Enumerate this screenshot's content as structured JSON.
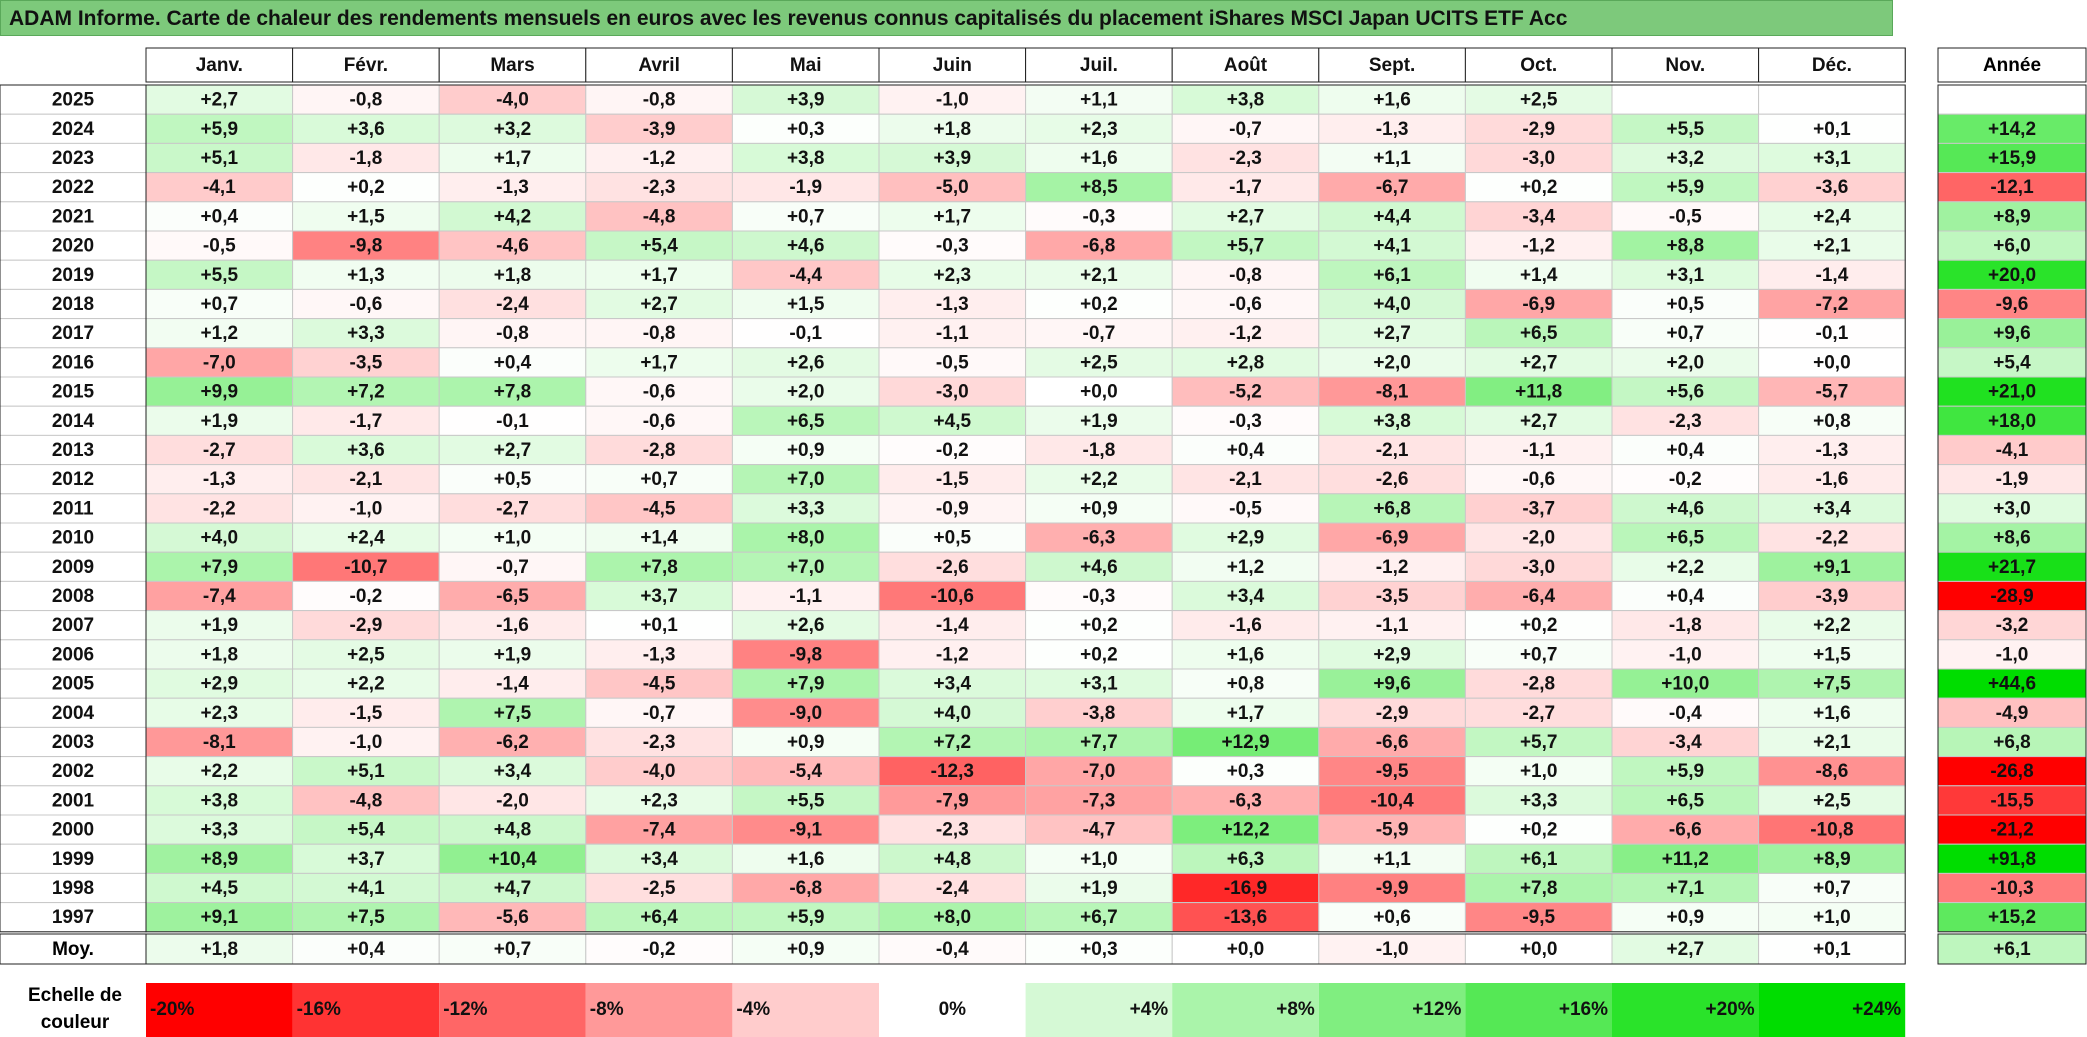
{
  "title": "ADAM Informe. Carte de chaleur des rendements mensuels en euros avec les revenus connus capitalisés du placement iShares MSCI Japan UCITS ETF Acc",
  "year_header_label": "Année",
  "average_row_label": "Moy.",
  "scale_label": [
    "Echelle de",
    "couleur"
  ],
  "colors": {
    "negative_max": "#ff0000",
    "neutral": "#ffffff",
    "positive_max": "#00dd00",
    "title_bg": "#7dc97b"
  },
  "chart_data": {
    "type": "heatmap",
    "title": "ADAM Informe. Carte de chaleur des rendements mensuels en euros avec les revenus connus capitalisés du placement iShares MSCI Japan UCITS ETF Acc",
    "columns": [
      "Janv.",
      "Févr.",
      "Mars",
      "Avril",
      "Mai",
      "Juin",
      "Juil.",
      "Août",
      "Sept.",
      "Oct.",
      "Nov.",
      "Déc."
    ],
    "years": [
      "2025",
      "2024",
      "2023",
      "2022",
      "2021",
      "2020",
      "2019",
      "2018",
      "2017",
      "2016",
      "2015",
      "2014",
      "2013",
      "2012",
      "2011",
      "2010",
      "2009",
      "2008",
      "2007",
      "2006",
      "2005",
      "2004",
      "2003",
      "2002",
      "2001",
      "2000",
      "1999",
      "1998",
      "1997"
    ],
    "monthly": [
      [
        "+2,7",
        "-0,8",
        "-4,0",
        "-0,8",
        "+3,9",
        "-1,0",
        "+1,1",
        "+3,8",
        "+1,6",
        "+2,5",
        "",
        ""
      ],
      [
        "+5,9",
        "+3,6",
        "+3,2",
        "-3,9",
        "+0,3",
        "+1,8",
        "+2,3",
        "-0,7",
        "-1,3",
        "-2,9",
        "+5,5",
        "+0,1"
      ],
      [
        "+5,1",
        "-1,8",
        "+1,7",
        "-1,2",
        "+3,8",
        "+3,9",
        "+1,6",
        "-2,3",
        "+1,1",
        "-3,0",
        "+3,2",
        "+3,1"
      ],
      [
        "-4,1",
        "+0,2",
        "-1,3",
        "-2,3",
        "-1,9",
        "-5,0",
        "+8,5",
        "-1,7",
        "-6,7",
        "+0,2",
        "+5,9",
        "-3,6"
      ],
      [
        "+0,4",
        "+1,5",
        "+4,2",
        "-4,8",
        "+0,7",
        "+1,7",
        "-0,3",
        "+2,7",
        "+4,4",
        "-3,4",
        "-0,5",
        "+2,4"
      ],
      [
        "-0,5",
        "-9,8",
        "-4,6",
        "+5,4",
        "+4,6",
        "-0,3",
        "-6,8",
        "+5,7",
        "+4,1",
        "-1,2",
        "+8,8",
        "+2,1"
      ],
      [
        "+5,5",
        "+1,3",
        "+1,8",
        "+1,7",
        "-4,4",
        "+2,3",
        "+2,1",
        "-0,8",
        "+6,1",
        "+1,4",
        "+3,1",
        "-1,4"
      ],
      [
        "+0,7",
        "-0,6",
        "-2,4",
        "+2,7",
        "+1,5",
        "-1,3",
        "+0,2",
        "-0,6",
        "+4,0",
        "-6,9",
        "+0,5",
        "-7,2"
      ],
      [
        "+1,2",
        "+3,3",
        "-0,8",
        "-0,8",
        "-0,1",
        "-1,1",
        "-0,7",
        "-1,2",
        "+2,7",
        "+6,5",
        "+0,7",
        "-0,1"
      ],
      [
        "-7,0",
        "-3,5",
        "+0,4",
        "+1,7",
        "+2,6",
        "-0,5",
        "+2,5",
        "+2,8",
        "+2,0",
        "+2,7",
        "+2,0",
        "+0,0"
      ],
      [
        "+9,9",
        "+7,2",
        "+7,8",
        "-0,6",
        "+2,0",
        "-3,0",
        "+0,0",
        "-5,2",
        "-8,1",
        "+11,8",
        "+5,6",
        "-5,7"
      ],
      [
        "+1,9",
        "-1,7",
        "-0,1",
        "-0,6",
        "+6,5",
        "+4,5",
        "+1,9",
        "-0,3",
        "+3,8",
        "+2,7",
        "-2,3",
        "+0,8"
      ],
      [
        "-2,7",
        "+3,6",
        "+2,7",
        "-2,8",
        "+0,9",
        "-0,2",
        "-1,8",
        "+0,4",
        "-2,1",
        "-1,1",
        "+0,4",
        "-1,3"
      ],
      [
        "-1,3",
        "-2,1",
        "+0,5",
        "+0,7",
        "+7,0",
        "-1,5",
        "+2,2",
        "-2,1",
        "-2,6",
        "-0,6",
        "-0,2",
        "-1,6"
      ],
      [
        "-2,2",
        "-1,0",
        "-2,7",
        "-4,5",
        "+3,3",
        "-0,9",
        "+0,9",
        "-0,5",
        "+6,8",
        "-3,7",
        "+4,6",
        "+3,4"
      ],
      [
        "+4,0",
        "+2,4",
        "+1,0",
        "+1,4",
        "+8,0",
        "+0,5",
        "-6,3",
        "+2,9",
        "-6,9",
        "-2,0",
        "+6,5",
        "-2,2"
      ],
      [
        "+7,9",
        "-10,7",
        "-0,7",
        "+7,8",
        "+7,0",
        "-2,6",
        "+4,6",
        "+1,2",
        "-1,2",
        "-3,0",
        "+2,2",
        "+9,1"
      ],
      [
        "-7,4",
        "-0,2",
        "-6,5",
        "+3,7",
        "-1,1",
        "-10,6",
        "-0,3",
        "+3,4",
        "-3,5",
        "-6,4",
        "+0,4",
        "-3,9"
      ],
      [
        "+1,9",
        "-2,9",
        "-1,6",
        "+0,1",
        "+2,6",
        "-1,4",
        "+0,2",
        "-1,6",
        "-1,1",
        "+0,2",
        "-1,8",
        "+2,2"
      ],
      [
        "+1,8",
        "+2,5",
        "+1,9",
        "-1,3",
        "-9,8",
        "-1,2",
        "+0,2",
        "+1,6",
        "+2,9",
        "+0,7",
        "-1,0",
        "+1,5"
      ],
      [
        "+2,9",
        "+2,2",
        "-1,4",
        "-4,5",
        "+7,9",
        "+3,4",
        "+3,1",
        "+0,8",
        "+9,6",
        "-2,8",
        "+10,0",
        "+7,5"
      ],
      [
        "+2,3",
        "-1,5",
        "+7,5",
        "-0,7",
        "-9,0",
        "+4,0",
        "-3,8",
        "+1,7",
        "-2,9",
        "-2,7",
        "-0,4",
        "+1,6"
      ],
      [
        "-8,1",
        "-1,0",
        "-6,2",
        "-2,3",
        "+0,9",
        "+7,2",
        "+7,7",
        "+12,9",
        "-6,6",
        "+5,7",
        "-3,4",
        "+2,1"
      ],
      [
        "+2,2",
        "+5,1",
        "+3,4",
        "-4,0",
        "-5,4",
        "-12,3",
        "-7,0",
        "+0,3",
        "-9,5",
        "+1,0",
        "+5,9",
        "-8,6"
      ],
      [
        "+3,8",
        "-4,8",
        "-2,0",
        "+2,3",
        "+5,5",
        "-7,9",
        "-7,3",
        "-6,3",
        "-10,4",
        "+3,3",
        "+6,5",
        "+2,5"
      ],
      [
        "+3,3",
        "+5,4",
        "+4,8",
        "-7,4",
        "-9,1",
        "-2,3",
        "-4,7",
        "+12,2",
        "-5,9",
        "+0,2",
        "-6,6",
        "-10,8"
      ],
      [
        "+8,9",
        "+3,7",
        "+10,4",
        "+3,4",
        "+1,6",
        "+4,8",
        "+1,0",
        "+6,3",
        "+1,1",
        "+6,1",
        "+11,2",
        "+8,9"
      ],
      [
        "+4,5",
        "+4,1",
        "+4,7",
        "-2,5",
        "-6,8",
        "-2,4",
        "+1,9",
        "-16,9",
        "-9,9",
        "+7,8",
        "+7,1",
        "+0,7"
      ],
      [
        "+9,1",
        "+7,5",
        "-5,6",
        "+6,4",
        "+5,9",
        "+8,0",
        "+6,7",
        "-13,6",
        "+0,6",
        "-9,5",
        "+0,9",
        "+1,0"
      ]
    ],
    "annual": [
      "",
      "+14,2",
      "+15,9",
      "-12,1",
      "+8,9",
      "+6,0",
      "+20,0",
      "-9,6",
      "+9,6",
      "+5,4",
      "+21,0",
      "+18,0",
      "-4,1",
      "-1,9",
      "+3,0",
      "+8,6",
      "+21,7",
      "-28,9",
      "-3,2",
      "-1,0",
      "+44,6",
      "-4,9",
      "+6,8",
      "-26,8",
      "-15,5",
      "-21,2",
      "+91,8",
      "-10,3",
      "+15,2"
    ],
    "averages": [
      "+1,8",
      "+0,4",
      "+0,7",
      "-0,2",
      "+0,9",
      "-0,4",
      "+0,3",
      "+0,0",
      "-1,0",
      "+0,0",
      "+2,7",
      "+0,1"
    ],
    "average_annual": "+6,1",
    "scale_labels": [
      "-20%",
      "-16%",
      "-12%",
      "-8%",
      "-4%",
      "0%",
      "+4%",
      "+8%",
      "+12%",
      "+16%",
      "+20%",
      "+24%"
    ],
    "scale_values": [
      -20,
      -16,
      -12,
      -8,
      -4,
      0,
      4,
      8,
      12,
      16,
      20,
      24
    ]
  }
}
